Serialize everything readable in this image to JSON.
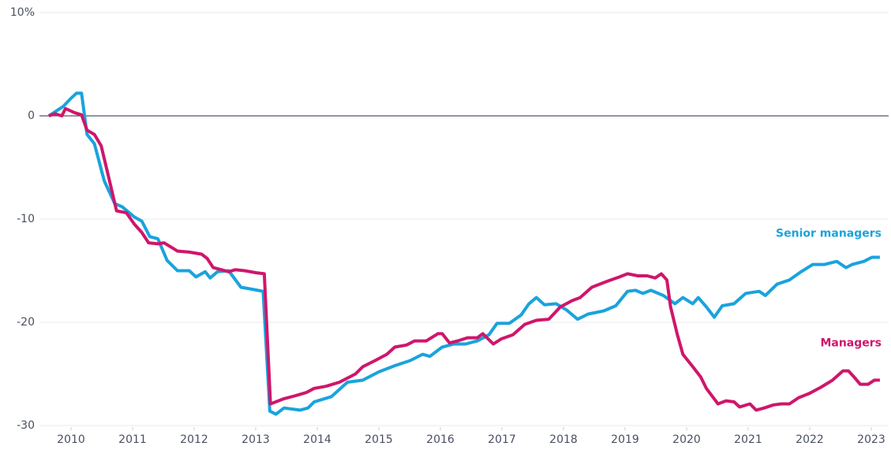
{
  "chart_data": {
    "type": "line",
    "xlim": [
      2009.5,
      2023.3
    ],
    "xticks": [
      2010,
      2011,
      2012,
      2013,
      2014,
      2015,
      2016,
      2017,
      2018,
      2019,
      2020,
      2021,
      2022,
      2023
    ],
    "ylim": [
      -30,
      10
    ],
    "yticks": [
      {
        "value": 10,
        "label": "10%"
      },
      0,
      -10,
      -20,
      -30
    ],
    "grid": true,
    "series": [
      {
        "name": "Senior managers",
        "color": "#1aa3dc",
        "x": [
          2009.64,
          2009.87,
          2010.0,
          2010.09,
          2010.17,
          2010.26,
          2010.38,
          2010.54,
          2010.71,
          2010.83,
          2011.03,
          2011.15,
          2011.28,
          2011.41,
          2011.56,
          2011.73,
          2011.92,
          2012.03,
          2012.18,
          2012.26,
          2012.38,
          2012.56,
          2012.76,
          2012.95,
          2013.12,
          2013.23,
          2013.33,
          2013.46,
          2013.72,
          2013.85,
          2013.95,
          2014.23,
          2014.49,
          2014.74,
          2015.0,
          2015.26,
          2015.51,
          2015.71,
          2015.83,
          2016.03,
          2016.22,
          2016.41,
          2016.6,
          2016.79,
          2016.92,
          2017.12,
          2017.31,
          2017.44,
          2017.56,
          2017.69,
          2017.88,
          2018.05,
          2018.23,
          2018.4,
          2018.65,
          2018.85,
          2019.04,
          2019.17,
          2019.29,
          2019.42,
          2019.62,
          2019.81,
          2019.94,
          2020.1,
          2020.19,
          2020.32,
          2020.45,
          2020.58,
          2020.77,
          2020.96,
          2021.18,
          2021.28,
          2021.47,
          2021.67,
          2021.86,
          2022.05,
          2022.24,
          2022.44,
          2022.59,
          2022.69,
          2022.88,
          2023.01,
          2023.14
        ],
        "values": [
          0,
          0.9,
          1.7,
          2.2,
          2.2,
          -1.8,
          -2.7,
          -6.3,
          -8.5,
          -8.8,
          -9.8,
          -10.2,
          -11.7,
          -11.9,
          -14.0,
          -15.0,
          -15.0,
          -15.6,
          -15.1,
          -15.7,
          -15.1,
          -15.0,
          -16.6,
          -16.8,
          -17.0,
          -28.6,
          -28.9,
          -28.3,
          -28.5,
          -28.3,
          -27.7,
          -27.2,
          -25.8,
          -25.6,
          -24.8,
          -24.2,
          -23.7,
          -23.1,
          -23.3,
          -22.4,
          -22.1,
          -22.1,
          -21.8,
          -21.2,
          -20.1,
          -20.1,
          -19.3,
          -18.2,
          -17.6,
          -18.3,
          -18.2,
          -18.8,
          -19.7,
          -19.2,
          -18.9,
          -18.4,
          -17.0,
          -16.9,
          -17.2,
          -16.9,
          -17.4,
          -18.2,
          -17.6,
          -18.2,
          -17.6,
          -18.5,
          -19.5,
          -18.4,
          -18.2,
          -17.2,
          -17.0,
          -17.4,
          -16.3,
          -15.9,
          -15.1,
          -14.4,
          -14.4,
          -14.1,
          -14.7,
          -14.4,
          -14.1,
          -13.7,
          -13.7
        ]
      },
      {
        "name": "Managers",
        "color": "#cf166b",
        "x": [
          2009.64,
          2009.74,
          2009.85,
          2009.91,
          2010.06,
          2010.17,
          2010.26,
          2010.38,
          2010.49,
          2010.59,
          2010.74,
          2010.9,
          2011.03,
          2011.15,
          2011.26,
          2011.41,
          2011.51,
          2011.73,
          2011.92,
          2012.12,
          2012.21,
          2012.31,
          2012.44,
          2012.56,
          2012.67,
          2012.82,
          2013.01,
          2013.14,
          2013.24,
          2013.46,
          2013.65,
          2013.82,
          2013.95,
          2014.14,
          2014.36,
          2014.62,
          2014.74,
          2014.94,
          2015.13,
          2015.26,
          2015.45,
          2015.58,
          2015.77,
          2015.96,
          2016.03,
          2016.15,
          2016.28,
          2016.44,
          2016.6,
          2016.69,
          2016.86,
          2016.99,
          2017.18,
          2017.37,
          2017.56,
          2017.76,
          2017.95,
          2018.14,
          2018.27,
          2018.46,
          2018.72,
          2018.91,
          2019.04,
          2019.21,
          2019.36,
          2019.49,
          2019.59,
          2019.68,
          2019.74,
          2019.85,
          2019.94,
          2020.1,
          2020.23,
          2020.32,
          2020.51,
          2020.64,
          2020.77,
          2020.86,
          2021.03,
          2021.13,
          2021.26,
          2021.41,
          2021.54,
          2021.67,
          2021.82,
          2021.99,
          2022.18,
          2022.37,
          2022.54,
          2022.63,
          2022.72,
          2022.82,
          2022.95,
          2023.05,
          2023.14
        ],
        "values": [
          0,
          0.2,
          0,
          0.7,
          0.3,
          0.1,
          -1.4,
          -1.8,
          -2.9,
          -5.4,
          -9.2,
          -9.4,
          -10.5,
          -11.3,
          -12.3,
          -12.4,
          -12.3,
          -13.1,
          -13.2,
          -13.4,
          -13.8,
          -14.7,
          -14.9,
          -15.1,
          -14.9,
          -15.0,
          -15.2,
          -15.3,
          -27.9,
          -27.4,
          -27.1,
          -26.8,
          -26.4,
          -26.2,
          -25.8,
          -25.0,
          -24.3,
          -23.7,
          -23.1,
          -22.4,
          -22.2,
          -21.8,
          -21.8,
          -21.1,
          -21.1,
          -22.0,
          -21.8,
          -21.5,
          -21.5,
          -21.1,
          -22.1,
          -21.6,
          -21.2,
          -20.2,
          -19.8,
          -19.7,
          -18.5,
          -17.9,
          -17.6,
          -16.6,
          -16.0,
          -15.6,
          -15.3,
          -15.5,
          -15.5,
          -15.7,
          -15.3,
          -15.9,
          -18.5,
          -21.2,
          -23.1,
          -24.3,
          -25.3,
          -26.4,
          -27.9,
          -27.6,
          -27.7,
          -28.2,
          -27.9,
          -28.5,
          -28.3,
          -28.0,
          -27.9,
          -27.9,
          -27.3,
          -26.9,
          -26.3,
          -25.6,
          -24.7,
          -24.7,
          -25.3,
          -26.0,
          -26.0,
          -25.6,
          -25.6
        ]
      }
    ]
  }
}
